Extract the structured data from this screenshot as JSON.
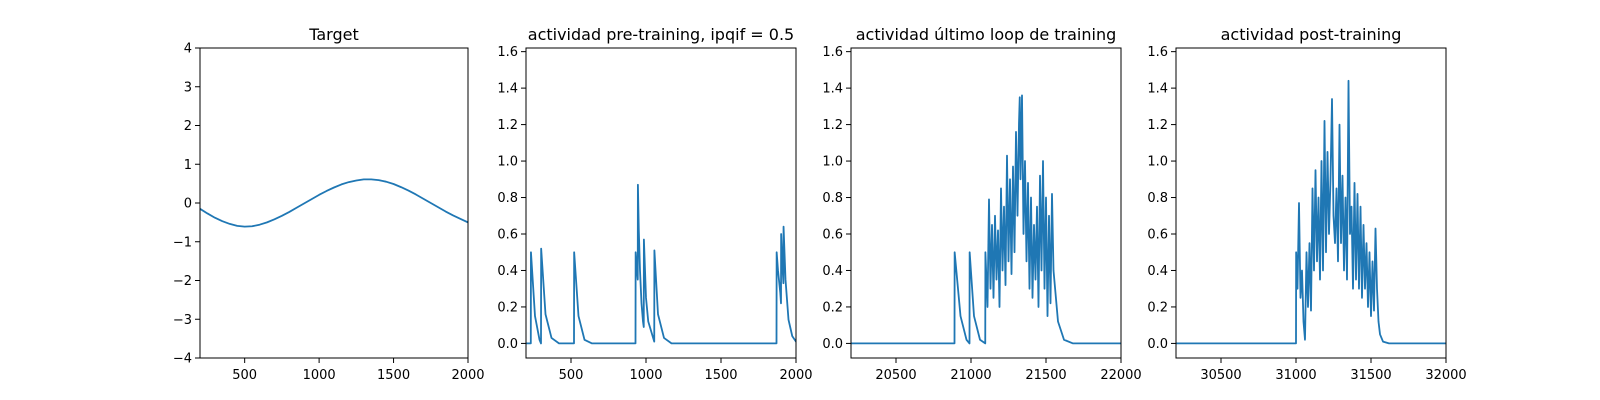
{
  "colors": {
    "series": "#1f77b4",
    "axis": "#000000",
    "background": "#ffffff"
  },
  "chart_data": [
    {
      "type": "line",
      "title": "Target",
      "xlabel": "",
      "ylabel": "",
      "xlim": [
        200,
        2000
      ],
      "ylim": [
        -4,
        4
      ],
      "xticks": [
        500,
        1000,
        1500,
        2000
      ],
      "yticks": [
        -4,
        -3,
        -2,
        -1,
        0,
        1,
        2,
        3,
        4
      ],
      "grid": false,
      "series": [
        {
          "x": [
            200,
            250,
            300,
            350,
            400,
            450,
            500,
            550,
            600,
            650,
            700,
            750,
            800,
            850,
            900,
            950,
            1000,
            1050,
            1100,
            1150,
            1200,
            1250,
            1300,
            1350,
            1400,
            1450,
            1500,
            1550,
            1600,
            1650,
            1700,
            1750,
            1800,
            1850,
            1900,
            1950,
            2000
          ],
          "values": [
            -0.15,
            -0.27,
            -0.38,
            -0.47,
            -0.54,
            -0.59,
            -0.61,
            -0.6,
            -0.56,
            -0.5,
            -0.42,
            -0.33,
            -0.23,
            -0.12,
            -0.01,
            0.1,
            0.21,
            0.31,
            0.4,
            0.48,
            0.54,
            0.58,
            0.61,
            0.61,
            0.59,
            0.55,
            0.49,
            0.41,
            0.32,
            0.22,
            0.11,
            0.0,
            -0.11,
            -0.22,
            -0.32,
            -0.41,
            -0.5
          ]
        }
      ]
    },
    {
      "type": "line",
      "title": "actividad pre-training, ipqif = 0.5",
      "xlabel": "",
      "ylabel": "",
      "xlim": [
        200,
        2000
      ],
      "ylim": [
        -0.08,
        1.62
      ],
      "xticks": [
        500,
        1000,
        1500,
        2000
      ],
      "yticks": [
        0.0,
        0.2,
        0.4,
        0.6,
        0.8,
        1.0,
        1.2,
        1.4,
        1.6
      ],
      "grid": false,
      "series": [
        {
          "x": [
            200,
            232,
            233,
            260,
            290,
            300,
            301,
            330,
            370,
            420,
            520,
            521,
            550,
            590,
            640,
            930,
            931,
            938,
            945,
            946,
            952,
            960,
            970,
            980,
            985,
            986,
            1000,
            1015,
            1055,
            1056,
            1080,
            1120,
            1170,
            1870,
            1871,
            1880,
            1895,
            1900,
            1901,
            1910,
            1916,
            1917,
            1930,
            1950,
            1975,
            2000
          ],
          "values": [
            0.0,
            0.0,
            0.5,
            0.15,
            0.02,
            0.0,
            0.52,
            0.16,
            0.03,
            0.0,
            0.0,
            0.5,
            0.15,
            0.02,
            0.0,
            0.0,
            0.5,
            0.42,
            0.35,
            0.87,
            0.62,
            0.4,
            0.22,
            0.12,
            0.09,
            0.57,
            0.25,
            0.12,
            0.01,
            0.51,
            0.16,
            0.03,
            0.0,
            0.0,
            0.5,
            0.4,
            0.28,
            0.22,
            0.6,
            0.42,
            0.33,
            0.64,
            0.35,
            0.13,
            0.04,
            0.01
          ]
        }
      ]
    },
    {
      "type": "line",
      "title": "actividad último loop de training",
      "xlabel": "",
      "ylabel": "",
      "xlim": [
        20200,
        22000
      ],
      "ylim": [
        -0.08,
        1.62
      ],
      "xticks": [
        20500,
        21000,
        21500,
        22000
      ],
      "yticks": [
        0.0,
        0.2,
        0.4,
        0.6,
        0.8,
        1.0,
        1.2,
        1.4,
        1.6
      ],
      "grid": false,
      "series": [
        {
          "x": [
            20200,
            20890,
            20891,
            20930,
            20970,
            20990,
            20991,
            21020,
            21060,
            21095,
            21096,
            21110,
            21120,
            21130,
            21140,
            21150,
            21160,
            21170,
            21180,
            21190,
            21200,
            21210,
            21220,
            21230,
            21240,
            21250,
            21260,
            21270,
            21280,
            21290,
            21300,
            21310,
            21320,
            21325,
            21330,
            21340,
            21350,
            21360,
            21370,
            21380,
            21390,
            21400,
            21410,
            21420,
            21430,
            21440,
            21450,
            21460,
            21470,
            21480,
            21490,
            21500,
            21510,
            21520,
            21530,
            21540,
            21550,
            21580,
            21620,
            21680,
            22000
          ],
          "values": [
            0.0,
            0.0,
            0.5,
            0.15,
            0.02,
            0.0,
            0.5,
            0.15,
            0.02,
            0.0,
            0.5,
            0.2,
            0.79,
            0.3,
            0.65,
            0.25,
            0.7,
            0.35,
            0.62,
            0.2,
            0.85,
            0.4,
            0.75,
            0.32,
            1.03,
            0.45,
            0.9,
            0.38,
            0.97,
            0.5,
            1.16,
            0.7,
            1.21,
            1.35,
            0.9,
            1.36,
            0.6,
            1.0,
            0.45,
            0.88,
            0.3,
            0.8,
            0.25,
            0.65,
            0.35,
            0.75,
            0.2,
            0.92,
            0.4,
            1.0,
            0.3,
            0.8,
            0.15,
            0.7,
            0.22,
            0.82,
            0.4,
            0.12,
            0.02,
            0.0,
            0.0
          ]
        }
      ]
    },
    {
      "type": "line",
      "title": "actividad post-training",
      "xlabel": "",
      "ylabel": "",
      "xlim": [
        30200,
        32000
      ],
      "ylim": [
        -0.08,
        1.62
      ],
      "xticks": [
        30500,
        31000,
        31500,
        32000
      ],
      "yticks": [
        0.0,
        0.2,
        0.4,
        0.6,
        0.8,
        1.0,
        1.2,
        1.4,
        1.6
      ],
      "grid": false,
      "series": [
        {
          "x": [
            30200,
            31000,
            31001,
            31010,
            31020,
            31030,
            31040,
            31050,
            31060,
            31070,
            31080,
            31090,
            31100,
            31110,
            31120,
            31130,
            31140,
            31150,
            31160,
            31170,
            31180,
            31190,
            31200,
            31210,
            31220,
            31230,
            31240,
            31250,
            31260,
            31270,
            31280,
            31290,
            31300,
            31310,
            31320,
            31330,
            31340,
            31350,
            31360,
            31370,
            31380,
            31390,
            31400,
            31410,
            31420,
            31430,
            31440,
            31450,
            31460,
            31470,
            31480,
            31490,
            31500,
            31510,
            31520,
            31530,
            31540,
            31550,
            31560,
            31580,
            31620,
            31700,
            32000
          ],
          "values": [
            0.0,
            0.0,
            0.5,
            0.3,
            0.77,
            0.25,
            0.4,
            0.12,
            0.02,
            0.5,
            0.2,
            0.55,
            0.18,
            0.85,
            0.4,
            0.95,
            0.45,
            0.8,
            0.35,
            1.0,
            0.4,
            1.22,
            0.5,
            1.05,
            0.6,
            0.9,
            1.34,
            0.7,
            0.55,
            0.85,
            0.45,
            1.2,
            0.55,
            0.92,
            0.4,
            0.8,
            0.35,
            1.44,
            0.6,
            0.75,
            0.3,
            0.88,
            0.35,
            0.82,
            0.3,
            0.75,
            0.25,
            0.65,
            0.3,
            0.55,
            0.2,
            0.5,
            0.15,
            0.45,
            0.18,
            0.63,
            0.3,
            0.12,
            0.05,
            0.01,
            0.0,
            0.0,
            0.0
          ]
        }
      ]
    }
  ]
}
